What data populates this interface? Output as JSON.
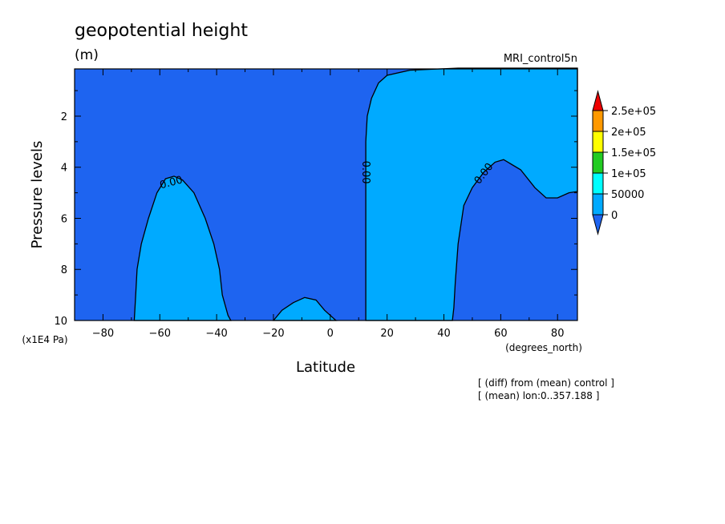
{
  "chart_data": {
    "type": "heatmap",
    "title": "geopotential height",
    "units": "(m)",
    "dataset": "MRI_control5n",
    "xlabel": "Latitude",
    "x_units": "(degrees_north)",
    "ylabel": "Pressure levels",
    "y_units": "(x1E4 Pa)",
    "xlim": [
      -90,
      87
    ],
    "ylim": [
      10,
      0.15
    ],
    "x_ticks": [
      -80,
      -60,
      -40,
      -20,
      0,
      20,
      40,
      60,
      80
    ],
    "x_tick_labels": [
      "−80",
      "−60",
      "−40",
      "−20",
      "0",
      "20",
      "40",
      "60",
      "80"
    ],
    "y_ticks": [
      2,
      4,
      6,
      8,
      10
    ],
    "y_tick_labels": [
      "2",
      "4",
      "6",
      "8",
      "10"
    ],
    "contour_label": "0.00",
    "colorbar": {
      "levels": [
        0,
        50000,
        100000,
        150000,
        200000,
        250000
      ],
      "labels": [
        "0",
        "50000",
        "1e+05",
        "1.5e+05",
        "2e+05",
        "2.5e+05"
      ],
      "colors": [
        "#1e64f0",
        "#00aaff",
        "#00ffff",
        "#22cc22",
        "#ffff00",
        "#ff9900",
        "#ee0000"
      ]
    },
    "fill_below_zero": "#1e64f0",
    "fill_above_zero": "#00aaff",
    "regions": [
      {
        "name": "region-southern",
        "points": [
          [
            -69,
            10
          ],
          [
            -68.5,
            9
          ],
          [
            -68,
            8
          ],
          [
            -66.5,
            7
          ],
          [
            -64,
            6
          ],
          [
            -61,
            5
          ],
          [
            -58,
            4.45
          ],
          [
            -55,
            4.35
          ],
          [
            -52,
            4.5
          ],
          [
            -48,
            5
          ],
          [
            -44,
            6
          ],
          [
            -41,
            7
          ],
          [
            -39,
            8
          ],
          [
            -38,
            9
          ],
          [
            -36,
            9.8
          ],
          [
            -35,
            10
          ]
        ]
      },
      {
        "name": "region-equatorial",
        "points": [
          [
            -20,
            10
          ],
          [
            -17,
            9.6
          ],
          [
            -13,
            9.3
          ],
          [
            -9,
            9.1
          ],
          [
            -5,
            9.2
          ],
          [
            -2,
            9.6
          ],
          [
            2,
            10
          ]
        ]
      },
      {
        "name": "region-northern",
        "points": [
          [
            12.5,
            10
          ],
          [
            12.5,
            9
          ],
          [
            12.5,
            7
          ],
          [
            12.5,
            5
          ],
          [
            12.5,
            3
          ],
          [
            13,
            2
          ],
          [
            14.5,
            1.3
          ],
          [
            17,
            0.7
          ],
          [
            20,
            0.4
          ],
          [
            28,
            0.2
          ],
          [
            45,
            0.12
          ],
          [
            87,
            0.12
          ],
          [
            87,
            4.95
          ],
          [
            84,
            5
          ],
          [
            80,
            5.2
          ],
          [
            76,
            5.2
          ],
          [
            72,
            4.8
          ],
          [
            67,
            4.1
          ],
          [
            61,
            3.7
          ],
          [
            58,
            3.8
          ],
          [
            54,
            4.2
          ],
          [
            50,
            4.8
          ],
          [
            47,
            5.5
          ],
          [
            45,
            7
          ],
          [
            44,
            8.5
          ],
          [
            43.5,
            9.5
          ],
          [
            43,
            10
          ]
        ]
      }
    ],
    "notes": [
      "[ (diff) from (mean) control ]",
      "[ (mean) lon:0..357.188 ]"
    ]
  }
}
